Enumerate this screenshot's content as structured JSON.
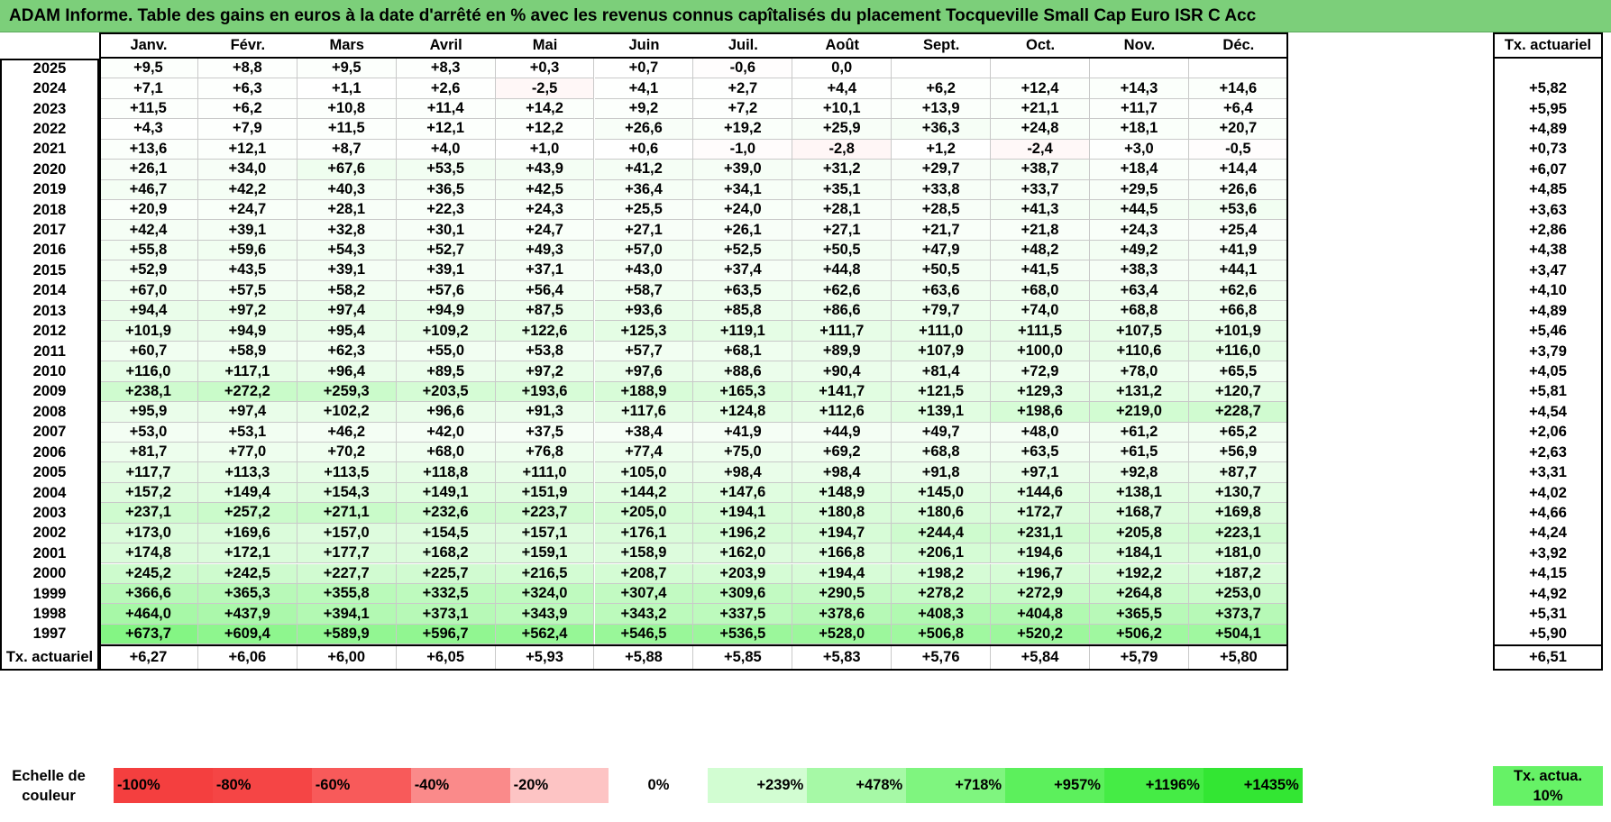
{
  "title": "ADAM Informe. Table des gains en euros à la date d'arrêté en % avec les revenus connus capîtalisés du placement Tocqueville Small Cap Euro ISR C Acc",
  "colors": {
    "title_bg": "#7ccf7a",
    "rate_box_bg": "#66f266"
  },
  "chart_data": {
    "type": "table",
    "columns": [
      "Janv.",
      "Févr.",
      "Mars",
      "Avril",
      "Mai",
      "Juin",
      "Juil.",
      "Août",
      "Sept.",
      "Oct.",
      "Nov.",
      "Déc."
    ],
    "rate_header": "Tx. actuariel",
    "rows": [
      {
        "year": "2025",
        "values": [
          "+9,5",
          "+8,8",
          "+9,5",
          "+8,3",
          "+0,3",
          "+0,7",
          "-0,6",
          "0,0",
          "",
          "",
          "",
          ""
        ],
        "rate": ""
      },
      {
        "year": "2024",
        "values": [
          "+7,1",
          "+6,3",
          "+1,1",
          "+2,6",
          "-2,5",
          "+4,1",
          "+2,7",
          "+4,4",
          "+6,2",
          "+12,4",
          "+14,3",
          "+14,6"
        ],
        "rate": "+5,82"
      },
      {
        "year": "2023",
        "values": [
          "+11,5",
          "+6,2",
          "+10,8",
          "+11,4",
          "+14,2",
          "+9,2",
          "+7,2",
          "+10,1",
          "+13,9",
          "+21,1",
          "+11,7",
          "+6,4"
        ],
        "rate": "+5,95"
      },
      {
        "year": "2022",
        "values": [
          "+4,3",
          "+7,9",
          "+11,5",
          "+12,1",
          "+12,2",
          "+26,6",
          "+19,2",
          "+25,9",
          "+36,3",
          "+24,8",
          "+18,1",
          "+20,7"
        ],
        "rate": "+4,89"
      },
      {
        "year": "2021",
        "values": [
          "+13,6",
          "+12,1",
          "+8,7",
          "+4,0",
          "+1,0",
          "+0,6",
          "-1,0",
          "-2,8",
          "+1,2",
          "-2,4",
          "+3,0",
          "-0,5"
        ],
        "rate": "+0,73"
      },
      {
        "year": "2020",
        "values": [
          "+26,1",
          "+34,0",
          "+67,6",
          "+53,5",
          "+43,9",
          "+41,2",
          "+39,0",
          "+31,2",
          "+29,7",
          "+38,7",
          "+18,4",
          "+14,4"
        ],
        "rate": "+6,07"
      },
      {
        "year": "2019",
        "values": [
          "+46,7",
          "+42,2",
          "+40,3",
          "+36,5",
          "+42,5",
          "+36,4",
          "+34,1",
          "+35,1",
          "+33,8",
          "+33,7",
          "+29,5",
          "+26,6"
        ],
        "rate": "+4,85"
      },
      {
        "year": "2018",
        "values": [
          "+20,9",
          "+24,7",
          "+28,1",
          "+22,3",
          "+24,3",
          "+25,5",
          "+24,0",
          "+28,1",
          "+28,5",
          "+41,3",
          "+44,5",
          "+53,6"
        ],
        "rate": "+3,63"
      },
      {
        "year": "2017",
        "values": [
          "+42,4",
          "+39,1",
          "+32,8",
          "+30,1",
          "+24,7",
          "+27,1",
          "+26,1",
          "+27,1",
          "+21,7",
          "+21,8",
          "+24,3",
          "+25,4"
        ],
        "rate": "+2,86"
      },
      {
        "year": "2016",
        "values": [
          "+55,8",
          "+59,6",
          "+54,3",
          "+52,7",
          "+49,3",
          "+57,0",
          "+52,5",
          "+50,5",
          "+47,9",
          "+48,2",
          "+49,2",
          "+41,9"
        ],
        "rate": "+4,38"
      },
      {
        "year": "2015",
        "values": [
          "+52,9",
          "+43,5",
          "+39,1",
          "+39,1",
          "+37,1",
          "+43,0",
          "+37,4",
          "+44,8",
          "+50,5",
          "+41,5",
          "+38,3",
          "+44,1"
        ],
        "rate": "+3,47"
      },
      {
        "year": "2014",
        "values": [
          "+67,0",
          "+57,5",
          "+58,2",
          "+57,6",
          "+56,4",
          "+58,7",
          "+63,5",
          "+62,6",
          "+63,6",
          "+68,0",
          "+63,4",
          "+62,6"
        ],
        "rate": "+4,10"
      },
      {
        "year": "2013",
        "values": [
          "+94,4",
          "+97,2",
          "+97,4",
          "+94,9",
          "+87,5",
          "+93,6",
          "+85,8",
          "+86,6",
          "+79,7",
          "+74,0",
          "+68,8",
          "+66,8"
        ],
        "rate": "+4,89"
      },
      {
        "year": "2012",
        "values": [
          "+101,9",
          "+94,9",
          "+95,4",
          "+109,2",
          "+122,6",
          "+125,3",
          "+119,1",
          "+111,7",
          "+111,0",
          "+111,5",
          "+107,5",
          "+101,9"
        ],
        "rate": "+5,46"
      },
      {
        "year": "2011",
        "values": [
          "+60,7",
          "+58,9",
          "+62,3",
          "+55,0",
          "+53,8",
          "+57,7",
          "+68,1",
          "+89,9",
          "+107,9",
          "+100,0",
          "+110,6",
          "+116,0"
        ],
        "rate": "+3,79"
      },
      {
        "year": "2010",
        "values": [
          "+116,0",
          "+117,1",
          "+96,4",
          "+89,5",
          "+97,2",
          "+97,6",
          "+88,6",
          "+90,4",
          "+81,4",
          "+72,9",
          "+78,0",
          "+65,5"
        ],
        "rate": "+4,05"
      },
      {
        "year": "2009",
        "values": [
          "+238,1",
          "+272,2",
          "+259,3",
          "+203,5",
          "+193,6",
          "+188,9",
          "+165,3",
          "+141,7",
          "+121,5",
          "+129,3",
          "+131,2",
          "+120,7"
        ],
        "rate": "+5,81"
      },
      {
        "year": "2008",
        "values": [
          "+95,9",
          "+97,4",
          "+102,2",
          "+96,6",
          "+91,3",
          "+117,6",
          "+124,8",
          "+112,6",
          "+139,1",
          "+198,6",
          "+219,0",
          "+228,7"
        ],
        "rate": "+4,54"
      },
      {
        "year": "2007",
        "values": [
          "+53,0",
          "+53,1",
          "+46,2",
          "+42,0",
          "+37,5",
          "+38,4",
          "+41,9",
          "+44,9",
          "+49,7",
          "+48,0",
          "+61,2",
          "+65,2"
        ],
        "rate": "+2,06"
      },
      {
        "year": "2006",
        "values": [
          "+81,7",
          "+77,0",
          "+70,2",
          "+68,0",
          "+76,8",
          "+77,4",
          "+75,0",
          "+69,2",
          "+68,8",
          "+63,5",
          "+61,5",
          "+56,9"
        ],
        "rate": "+2,63"
      },
      {
        "year": "2005",
        "values": [
          "+117,7",
          "+113,3",
          "+113,5",
          "+118,8",
          "+111,0",
          "+105,0",
          "+98,4",
          "+98,4",
          "+91,8",
          "+97,1",
          "+92,8",
          "+87,7"
        ],
        "rate": "+3,31"
      },
      {
        "year": "2004",
        "values": [
          "+157,2",
          "+149,4",
          "+154,3",
          "+149,1",
          "+151,9",
          "+144,2",
          "+147,6",
          "+148,9",
          "+145,0",
          "+144,6",
          "+138,1",
          "+130,7"
        ],
        "rate": "+4,02"
      },
      {
        "year": "2003",
        "values": [
          "+237,1",
          "+257,2",
          "+271,1",
          "+232,6",
          "+223,7",
          "+205,0",
          "+194,1",
          "+180,8",
          "+180,6",
          "+172,7",
          "+168,7",
          "+169,8"
        ],
        "rate": "+4,66"
      },
      {
        "year": "2002",
        "values": [
          "+173,0",
          "+169,6",
          "+157,0",
          "+154,5",
          "+157,1",
          "+176,1",
          "+196,2",
          "+194,7",
          "+244,4",
          "+231,1",
          "+205,8",
          "+223,1"
        ],
        "rate": "+4,24"
      },
      {
        "year": "2001",
        "values": [
          "+174,8",
          "+172,1",
          "+177,7",
          "+168,2",
          "+159,1",
          "+158,9",
          "+162,0",
          "+166,8",
          "+206,1",
          "+194,6",
          "+184,1",
          "+181,0"
        ],
        "rate": "+3,92"
      },
      {
        "year": "2000",
        "values": [
          "+245,2",
          "+242,5",
          "+227,7",
          "+225,7",
          "+216,5",
          "+208,7",
          "+203,9",
          "+194,4",
          "+198,2",
          "+196,7",
          "+192,2",
          "+187,2"
        ],
        "rate": "+4,15"
      },
      {
        "year": "1999",
        "values": [
          "+366,6",
          "+365,3",
          "+355,8",
          "+332,5",
          "+324,0",
          "+307,4",
          "+309,6",
          "+290,5",
          "+278,2",
          "+272,9",
          "+264,8",
          "+253,0"
        ],
        "rate": "+4,92"
      },
      {
        "year": "1998",
        "values": [
          "+464,0",
          "+437,9",
          "+394,1",
          "+373,1",
          "+343,9",
          "+343,2",
          "+337,5",
          "+378,6",
          "+408,3",
          "+404,8",
          "+365,5",
          "+373,7"
        ],
        "rate": "+5,31"
      },
      {
        "year": "1997",
        "values": [
          "+673,7",
          "+609,4",
          "+589,9",
          "+596,7",
          "+562,4",
          "+546,5",
          "+536,5",
          "+528,0",
          "+506,8",
          "+520,2",
          "+506,2",
          "+504,1"
        ],
        "rate": "+5,90"
      }
    ],
    "footer": {
      "label": "Tx. actuariel",
      "values": [
        "+6,27",
        "+6,06",
        "+6,00",
        "+6,05",
        "+5,93",
        "+5,88",
        "+5,85",
        "+5,83",
        "+5,76",
        "+5,84",
        "+5,79",
        "+5,80"
      ],
      "rate": "+6,51"
    },
    "color_scale": {
      "label": "Echelle de couleur",
      "steps": [
        {
          "label": "-100%",
          "value": -100,
          "color": "#f43f3f"
        },
        {
          "label": "-80%",
          "value": -80,
          "color": "#f54545"
        },
        {
          "label": "-60%",
          "value": -60,
          "color": "#f85a5a"
        },
        {
          "label": "-40%",
          "value": -40,
          "color": "#fa8a8a"
        },
        {
          "label": "-20%",
          "value": -20,
          "color": "#fdc4c4"
        },
        {
          "label": "0%",
          "value": 0,
          "color": "#ffffff"
        },
        {
          "label": "+239%",
          "value": 239,
          "color": "#d2fdd2"
        },
        {
          "label": "+478%",
          "value": 478,
          "color": "#a6f9a6"
        },
        {
          "label": "+718%",
          "value": 718,
          "color": "#7ff57f"
        },
        {
          "label": "+957%",
          "value": 957,
          "color": "#5cf05c"
        },
        {
          "label": "+1196%",
          "value": 1196,
          "color": "#45ec45"
        },
        {
          "label": "+1435%",
          "value": 1435,
          "color": "#33e633"
        }
      ],
      "rate_box_label": "Tx. actua. 10%"
    }
  }
}
